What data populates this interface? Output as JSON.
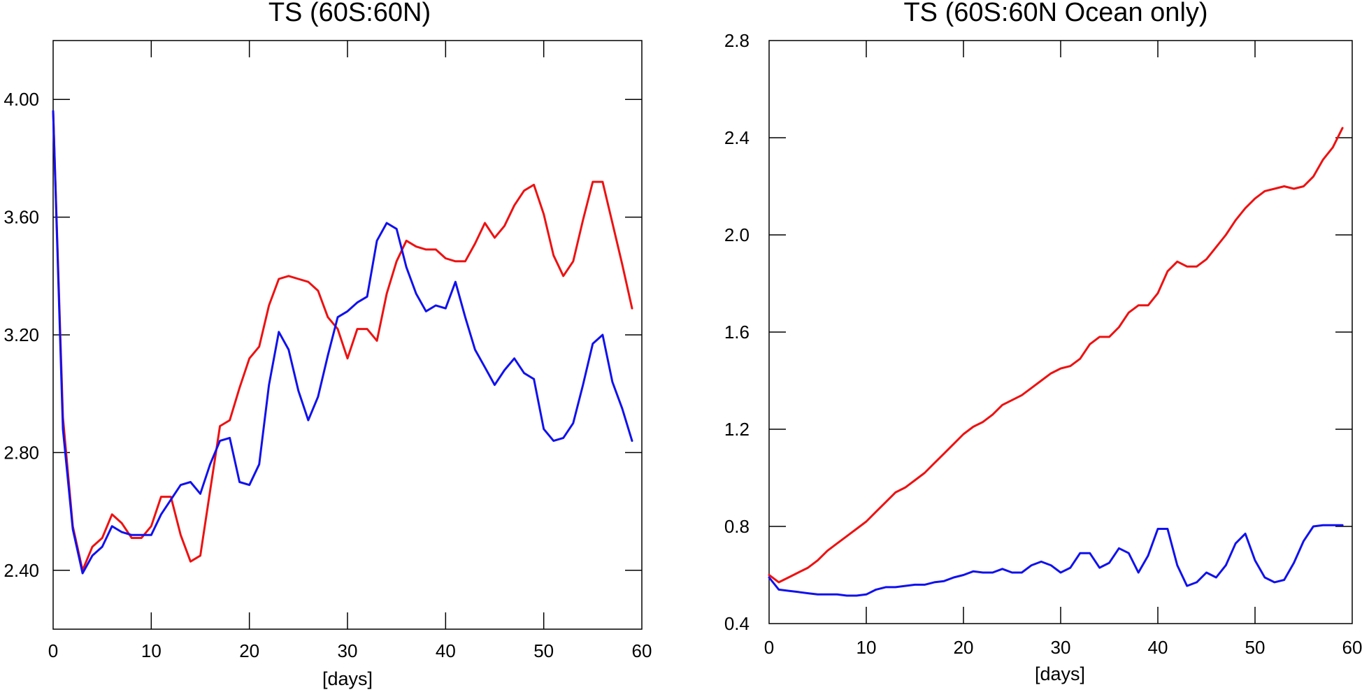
{
  "chart_data": [
    {
      "type": "line",
      "title": "TS (60S:60N)",
      "xlabel": "[days]",
      "ylabel": "",
      "xlim": [
        0,
        60
      ],
      "ylim": [
        2.2,
        4.2
      ],
      "xticks": [
        0,
        10,
        20,
        30,
        40,
        50,
        60
      ],
      "xtick_labels": [
        "0",
        "10",
        "20",
        "30",
        "40",
        "50",
        "60"
      ],
      "yticks": [
        2.4,
        2.8,
        3.2,
        3.6,
        4.0
      ],
      "ytick_labels": [
        "2.40",
        "2.80",
        "3.20",
        "3.60",
        "4.00"
      ],
      "grid": false,
      "series": [
        {
          "name": "red",
          "color": "#ee1111",
          "x": [
            0,
            1,
            2,
            3,
            4,
            5,
            6,
            7,
            8,
            9,
            10,
            11,
            12,
            13,
            14,
            15,
            16,
            17,
            18,
            19,
            20,
            21,
            22,
            23,
            24,
            25,
            26,
            27,
            28,
            29,
            30,
            31,
            32,
            33,
            34,
            35,
            36,
            37,
            38,
            39,
            40,
            41,
            42,
            43,
            44,
            45,
            46,
            47,
            48,
            49,
            50,
            51,
            52,
            53,
            54,
            55,
            56,
            57,
            58,
            59
          ],
          "values": [
            3.96,
            2.92,
            2.55,
            2.4,
            2.48,
            2.51,
            2.59,
            2.56,
            2.51,
            2.51,
            2.55,
            2.65,
            2.65,
            2.52,
            2.43,
            2.45,
            2.67,
            2.89,
            2.91,
            3.02,
            3.12,
            3.16,
            3.3,
            3.39,
            3.4,
            3.39,
            3.38,
            3.35,
            3.26,
            3.22,
            3.12,
            3.22,
            3.22,
            3.18,
            3.34,
            3.45,
            3.52,
            3.5,
            3.49,
            3.49,
            3.46,
            3.45,
            3.45,
            3.51,
            3.58,
            3.53,
            3.57,
            3.64,
            3.69,
            3.71,
            3.61,
            3.47,
            3.4,
            3.45,
            3.59,
            3.72,
            3.72,
            3.58,
            3.44,
            3.29
          ]
        },
        {
          "name": "blue",
          "color": "#1111ee",
          "x": [
            0,
            1,
            2,
            3,
            4,
            5,
            6,
            7,
            8,
            9,
            10,
            11,
            12,
            13,
            14,
            15,
            16,
            17,
            18,
            19,
            20,
            21,
            22,
            23,
            24,
            25,
            26,
            27,
            28,
            29,
            30,
            31,
            32,
            33,
            34,
            35,
            36,
            37,
            38,
            39,
            40,
            41,
            42,
            43,
            44,
            45,
            46,
            47,
            48,
            49,
            50,
            51,
            52,
            53,
            54,
            55,
            56,
            57,
            58,
            59
          ],
          "values": [
            3.96,
            2.88,
            2.54,
            2.39,
            2.45,
            2.48,
            2.55,
            2.53,
            2.52,
            2.52,
            2.52,
            2.59,
            2.64,
            2.69,
            2.7,
            2.66,
            2.76,
            2.84,
            2.85,
            2.7,
            2.69,
            2.76,
            3.03,
            3.21,
            3.15,
            3.01,
            2.91,
            2.99,
            3.13,
            3.26,
            3.28,
            3.31,
            3.33,
            3.52,
            3.58,
            3.56,
            3.43,
            3.34,
            3.28,
            3.3,
            3.29,
            3.38,
            3.26,
            3.15,
            3.09,
            3.03,
            3.08,
            3.12,
            3.07,
            3.05,
            2.88,
            2.84,
            2.85,
            2.9,
            3.03,
            3.17,
            3.2,
            3.04,
            2.95,
            2.84
          ]
        }
      ]
    },
    {
      "type": "line",
      "title": "TS (60S:60N Ocean only)",
      "xlabel": "[days]",
      "ylabel": "",
      "xlim": [
        0,
        60
      ],
      "ylim": [
        0.4,
        2.8
      ],
      "xticks": [
        0,
        10,
        20,
        30,
        40,
        50,
        60
      ],
      "xtick_labels": [
        "0",
        "10",
        "20",
        "30",
        "40",
        "50",
        "60"
      ],
      "yticks": [
        0.4,
        0.8,
        1.2,
        1.6,
        2.0,
        2.4,
        2.8
      ],
      "ytick_labels": [
        "0.4",
        "0.8",
        "1.2",
        "1.6",
        "2.0",
        "2.4",
        "2.8"
      ],
      "grid": false,
      "series": [
        {
          "name": "red",
          "color": "#ee1111",
          "x": [
            0,
            1,
            2,
            3,
            4,
            5,
            6,
            7,
            8,
            9,
            10,
            11,
            12,
            13,
            14,
            15,
            16,
            17,
            18,
            19,
            20,
            21,
            22,
            23,
            24,
            25,
            26,
            27,
            28,
            29,
            30,
            31,
            32,
            33,
            34,
            35,
            36,
            37,
            38,
            39,
            40,
            41,
            42,
            43,
            44,
            45,
            46,
            47,
            48,
            49,
            50,
            51,
            52,
            53,
            54,
            55,
            56,
            57,
            58,
            59
          ],
          "values": [
            0.6,
            0.57,
            0.59,
            0.61,
            0.63,
            0.66,
            0.7,
            0.73,
            0.76,
            0.79,
            0.82,
            0.86,
            0.9,
            0.94,
            0.96,
            0.99,
            1.02,
            1.06,
            1.1,
            1.14,
            1.18,
            1.21,
            1.23,
            1.26,
            1.3,
            1.32,
            1.34,
            1.37,
            1.4,
            1.43,
            1.45,
            1.46,
            1.49,
            1.55,
            1.58,
            1.58,
            1.62,
            1.68,
            1.71,
            1.71,
            1.76,
            1.85,
            1.89,
            1.87,
            1.87,
            1.9,
            1.95,
            2.0,
            2.06,
            2.11,
            2.15,
            2.18,
            2.19,
            2.2,
            2.19,
            2.2,
            2.24,
            2.31,
            2.36,
            2.44
          ]
        },
        {
          "name": "blue",
          "color": "#1111ee",
          "x": [
            0,
            1,
            2,
            3,
            4,
            5,
            6,
            7,
            8,
            9,
            10,
            11,
            12,
            13,
            14,
            15,
            16,
            17,
            18,
            19,
            20,
            21,
            22,
            23,
            24,
            25,
            26,
            27,
            28,
            29,
            30,
            31,
            32,
            33,
            34,
            35,
            36,
            37,
            38,
            39,
            40,
            41,
            42,
            43,
            44,
            45,
            46,
            47,
            48,
            49,
            50,
            51,
            52,
            53,
            54,
            55,
            56,
            57,
            58,
            59
          ],
          "values": [
            0.59,
            0.54,
            0.535,
            0.53,
            0.525,
            0.52,
            0.52,
            0.52,
            0.515,
            0.515,
            0.52,
            0.54,
            0.55,
            0.55,
            0.555,
            0.56,
            0.56,
            0.57,
            0.575,
            0.59,
            0.6,
            0.615,
            0.61,
            0.61,
            0.625,
            0.61,
            0.61,
            0.64,
            0.655,
            0.64,
            0.61,
            0.63,
            0.69,
            0.69,
            0.63,
            0.65,
            0.71,
            0.69,
            0.61,
            0.68,
            0.79,
            0.79,
            0.64,
            0.555,
            0.57,
            0.61,
            0.59,
            0.64,
            0.73,
            0.77,
            0.66,
            0.59,
            0.57,
            0.58,
            0.65,
            0.74,
            0.8,
            0.805,
            0.805,
            0.805
          ]
        }
      ]
    }
  ]
}
